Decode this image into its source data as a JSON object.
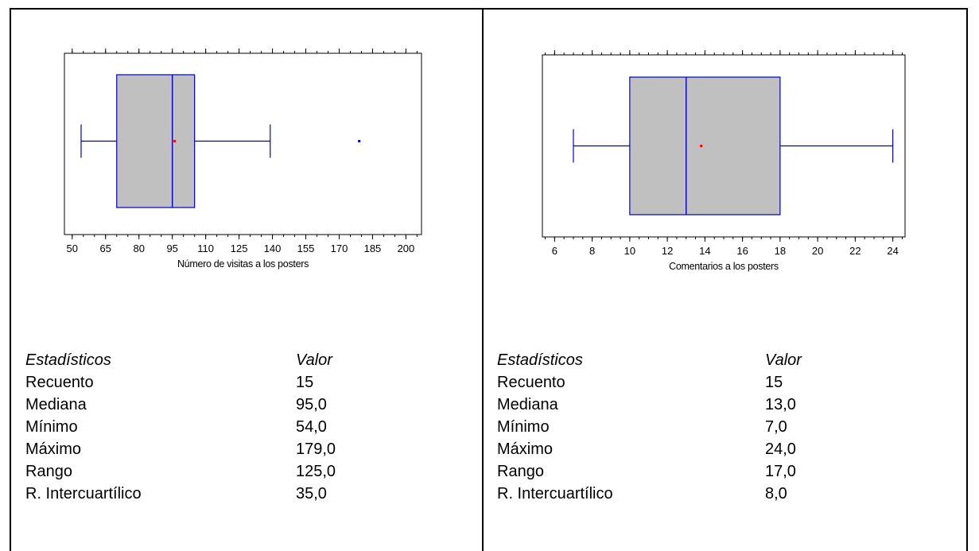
{
  "chart_data": [
    {
      "type": "box",
      "xlabel": "Número de visitas a los posters",
      "xlim": [
        46.5,
        207
      ],
      "ticks": [
        50,
        65,
        80,
        95,
        110,
        125,
        140,
        155,
        170,
        185,
        200
      ],
      "minor_step": 5,
      "box": {
        "whisker_low": 54,
        "q1": 70,
        "median": 95,
        "q3": 105,
        "whisker_high": 139,
        "mean": 96
      },
      "outliers": [
        179
      ],
      "colors": {
        "box_fill": "#C0C0C0",
        "box_stroke": "#0000CC",
        "mean": "#FF0000"
      },
      "stats": {
        "header": [
          "Estadísticos",
          "Valor"
        ],
        "rows": [
          [
            "Recuento",
            "15"
          ],
          [
            "Mediana",
            "95,0"
          ],
          [
            "Mínimo",
            "54,0"
          ],
          [
            "Máximo",
            "179,0"
          ],
          [
            "Rango",
            "125,0"
          ],
          [
            "R. Intercuartílico",
            "35,0"
          ]
        ]
      }
    },
    {
      "type": "box",
      "xlabel": "Comentarios a los posters",
      "xlim": [
        5.35,
        24.65
      ],
      "ticks": [
        6,
        8,
        10,
        12,
        14,
        16,
        18,
        20,
        22,
        24
      ],
      "minor_step": 0.5,
      "box": {
        "whisker_low": 7,
        "q1": 10,
        "median": 13,
        "q3": 18,
        "whisker_high": 24,
        "mean": 13.8
      },
      "outliers": [],
      "colors": {
        "box_fill": "#C0C0C0",
        "box_stroke": "#0000CC",
        "mean": "#FF0000"
      },
      "stats": {
        "header": [
          "Estadísticos",
          "Valor"
        ],
        "rows": [
          [
            "Recuento",
            "15"
          ],
          [
            "Mediana",
            "13,0"
          ],
          [
            "Mínimo",
            "7,0"
          ],
          [
            "Máximo",
            "24,0"
          ],
          [
            "Rango",
            "17,0"
          ],
          [
            "R. Intercuartílico",
            "8,0"
          ]
        ]
      }
    }
  ]
}
